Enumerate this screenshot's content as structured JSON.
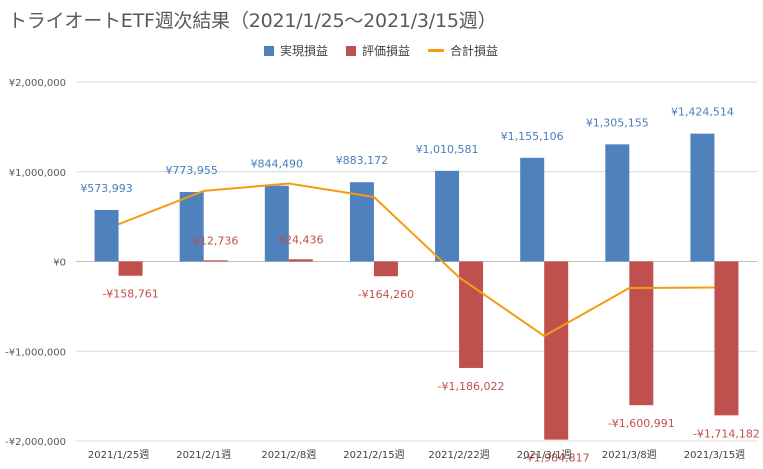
{
  "chart_data": {
    "type": "bar",
    "title": "トライオートETF週次結果（2021/1/25～2021/3/15週）",
    "categories": [
      "2021/1/25週",
      "2021/2/1週",
      "2021/2/8週",
      "2021/2/15週",
      "2021/2/22週",
      "2021/3/1週",
      "2021/3/8週",
      "2021/3/15週"
    ],
    "series": [
      {
        "name": "実現損益",
        "kind": "bar",
        "color": "#4F81BD",
        "values": [
          573993,
          773955,
          844490,
          883172,
          1010581,
          1155106,
          1305155,
          1424514
        ],
        "labels": [
          "¥573,993",
          "¥773,955",
          "¥844,490",
          "¥883,172",
          "¥1,010,581",
          "¥1,155,106",
          "¥1,305,155",
          "¥1,424,514"
        ]
      },
      {
        "name": "評価損益",
        "kind": "bar",
        "color": "#C0504D",
        "values": [
          -158761,
          12736,
          24436,
          -164260,
          -1186022,
          -1984817,
          -1600991,
          -1714182
        ],
        "labels": [
          "-¥158,761",
          "¥12,736",
          "¥24,436",
          "-¥164,260",
          "-¥1,186,022",
          "-¥1,984,817",
          "-¥1,600,991",
          "-¥1,714,182"
        ]
      },
      {
        "name": "合計損益",
        "kind": "line",
        "color": "#F39C12",
        "values": [
          415232,
          786691,
          868926,
          718912,
          -175441,
          -829711,
          -295836,
          -289668
        ]
      }
    ],
    "yticks": [
      2000000,
      1000000,
      0,
      -1000000,
      -2000000
    ],
    "ytick_labels": [
      "¥2,000,000",
      "¥1,000,000",
      "¥0",
      "-¥1,000,000",
      "-¥2,000,000"
    ],
    "ylim": [
      -2000000,
      2000000
    ],
    "legend_position": "top",
    "grid": "horizontal"
  }
}
